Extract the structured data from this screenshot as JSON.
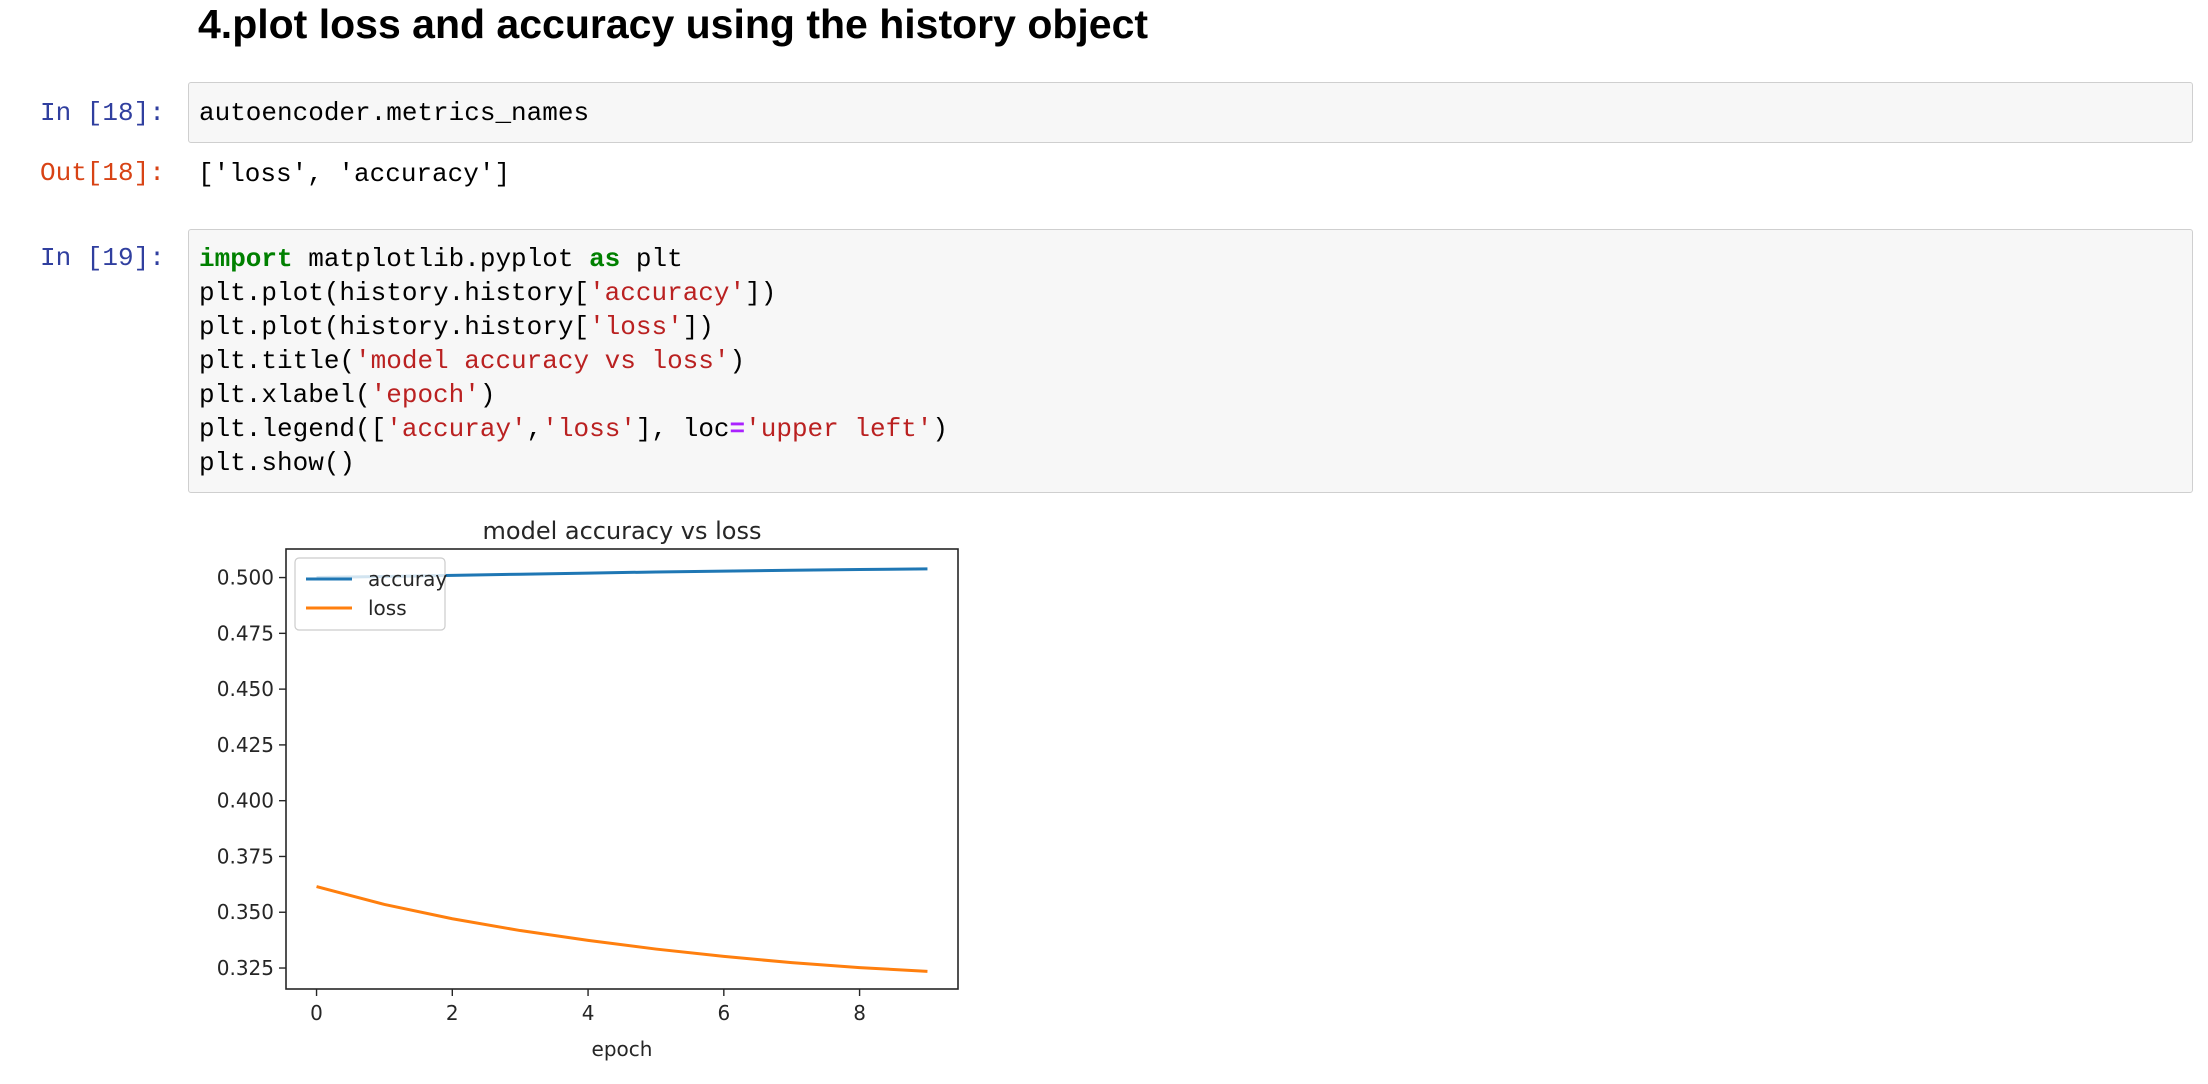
{
  "heading": "4.plot loss and accuracy using the history object",
  "cells": {
    "cell18": {
      "in_prompt": "In [18]:",
      "code": "autoencoder.metrics_names",
      "out_prompt": "Out[18]:",
      "output": "['loss', 'accuracy']"
    },
    "cell19": {
      "in_prompt": "In [19]:",
      "code_lines": [
        "import matplotlib.pyplot as plt",
        "plt.plot(history.history['accuracy'])",
        "plt.plot(history.history['loss'])",
        "plt.title('model accuracy vs loss')",
        "plt.xlabel('epoch')",
        "plt.legend(['accuray','loss'], loc='upper left')",
        "plt.show()"
      ]
    }
  },
  "syntax_colors": {
    "keyword": "#008000",
    "string": "#ba2121",
    "operator": "#aa22ff",
    "in_prompt": "#303f9f",
    "out_prompt": "#d84315"
  },
  "chart_data": {
    "type": "line",
    "title": "model accuracy vs loss",
    "xlabel": "epoch",
    "ylabel": "",
    "x": [
      0,
      1,
      2,
      3,
      4,
      5,
      6,
      7,
      8,
      9
    ],
    "series": [
      {
        "name": "accuray",
        "color": "#1f77b4",
        "values": [
          0.5,
          0.5005,
          0.501,
          0.5015,
          0.502,
          0.5025,
          0.5029,
          0.5033,
          0.5036,
          0.5039
        ]
      },
      {
        "name": "loss",
        "color": "#ff7f0e",
        "values": [
          0.3615,
          0.3535,
          0.3471,
          0.3418,
          0.3374,
          0.3335,
          0.3302,
          0.3274,
          0.3252,
          0.3235
        ]
      }
    ],
    "xlim": [
      -0.45,
      9.45
    ],
    "ylim": [
      0.3156,
      0.5128
    ],
    "xticks": [
      0,
      2,
      4,
      6,
      8
    ],
    "xtick_labels": [
      "0",
      "2",
      "4",
      "6",
      "8"
    ],
    "yticks": [
      0.325,
      0.35,
      0.375,
      0.4,
      0.425,
      0.45,
      0.475,
      0.5
    ],
    "ytick_labels": [
      "0.325",
      "0.350",
      "0.375",
      "0.400",
      "0.425",
      "0.450",
      "0.475",
      "0.500"
    ],
    "grid": false,
    "legend_position": "upper left"
  }
}
